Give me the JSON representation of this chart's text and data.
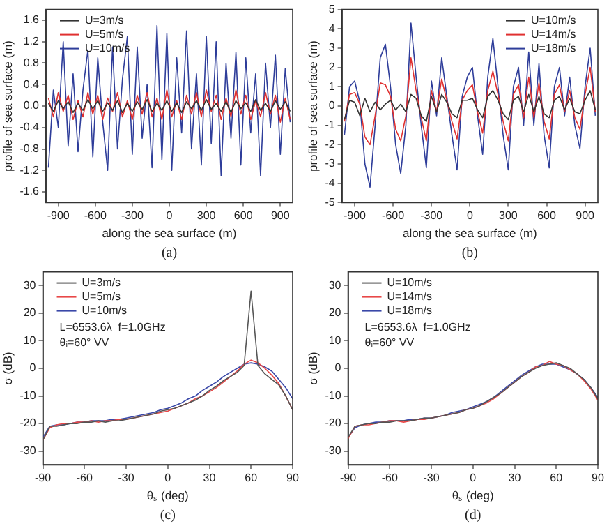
{
  "chart_data": [
    {
      "type": "line",
      "xlabel": "along the sea surface (m)",
      "ylabel": "profile of sea surface (m)",
      "legend": "top left",
      "grid": false,
      "marker": "none",
      "line_style": "solid",
      "xlim": [
        -1000,
        1000
      ],
      "xticks": [
        -900,
        -600,
        -300,
        0,
        300,
        600,
        900
      ],
      "ylim": [
        -1.8,
        1.8
      ],
      "yticks": [
        -1.6,
        -1.2,
        -0.8,
        -0.4,
        {
          "value": 0,
          "label": "0.0"
        },
        0.4,
        0.8,
        1.2,
        1.6
      ],
      "x": [
        -980,
        -940,
        -900,
        -860,
        -820,
        -780,
        -740,
        -700,
        -660,
        -620,
        -580,
        -540,
        -500,
        -460,
        -420,
        -380,
        -340,
        -300,
        -260,
        -220,
        -180,
        -140,
        -100,
        -60,
        -20,
        20,
        60,
        100,
        140,
        180,
        220,
        260,
        300,
        340,
        380,
        420,
        460,
        500,
        540,
        580,
        620,
        660,
        700,
        740,
        780,
        820,
        860,
        900,
        940,
        980
      ],
      "series": [
        {
          "name": "U=3m/s",
          "color": "#333333",
          "values": [
            0.05,
            -0.1,
            0.1,
            -0.05,
            0.08,
            -0.12,
            0.05,
            -0.08,
            0.12,
            -0.05,
            0.1,
            -0.1,
            0.06,
            -0.08,
            0.1,
            -0.12,
            0.05,
            -0.1,
            0.08,
            -0.06,
            0.12,
            -0.1,
            0.05,
            -0.08,
            0.1,
            -0.1,
            0.06,
            -0.12,
            0.08,
            -0.05,
            0.1,
            -0.08,
            0.12,
            -0.06,
            0.05,
            -0.1,
            0.08,
            -0.12,
            0.1,
            -0.05,
            0.06,
            -0.1,
            0.12,
            -0.08,
            0.05,
            -0.1,
            0.1,
            -0.06,
            0.08,
            -0.1
          ]
        },
        {
          "name": "U=5m/s",
          "color": "#e03030",
          "values": [
            0.15,
            -0.2,
            0.25,
            -0.1,
            0.2,
            -0.25,
            0.1,
            -0.2,
            0.25,
            -0.15,
            0.2,
            -0.25,
            0.15,
            -0.1,
            0.25,
            -0.2,
            0.1,
            -0.25,
            0.2,
            -0.15,
            0.25,
            -0.2,
            0.15,
            -0.25,
            0.3,
            -0.2,
            0.1,
            -0.25,
            0.2,
            -0.15,
            0.25,
            -0.2,
            0.3,
            -0.1,
            0.2,
            -0.25,
            0.15,
            -0.2,
            0.3,
            -0.15,
            0.2,
            -0.25,
            0.1,
            -0.2,
            0.25,
            -0.15,
            0.2,
            -0.3,
            0.15,
            -0.25
          ]
        },
        {
          "name": "U=10m/s",
          "color": "#2e3d9a",
          "values": [
            -1.15,
            0.3,
            -0.4,
            1.2,
            -0.75,
            0.6,
            -0.85,
            0.3,
            1.05,
            -0.95,
            0.9,
            -0.3,
            -1.2,
            1.1,
            -0.8,
            0.5,
            1.3,
            -0.9,
            1.1,
            -0.6,
            0.4,
            -1.15,
            1.5,
            -1.0,
            1.35,
            -1.2,
            0.9,
            -0.5,
            1.4,
            -0.8,
            0.6,
            -1.1,
            1.3,
            -0.7,
            1.2,
            -1.3,
            0.8,
            -0.6,
            1.0,
            -1.1,
            0.9,
            -0.5,
            0.6,
            -1.3,
            0.8,
            -0.4,
            0.95,
            -0.9,
            0.7,
            -0.3
          ]
        }
      ],
      "annotations": [
        "(a)"
      ]
    },
    {
      "type": "line",
      "xlabel": "along the sea surface (m)",
      "ylabel": "profile of sea surface (m)",
      "legend": "top right",
      "grid": false,
      "marker": "none",
      "line_style": "solid",
      "xlim": [
        -1000,
        1000
      ],
      "xticks": [
        -900,
        -600,
        -300,
        0,
        300,
        600,
        900
      ],
      "ylim": [
        -5,
        5
      ],
      "yticks": [
        -5,
        -4,
        -3,
        -2,
        -1,
        0,
        1,
        2,
        3,
        4,
        5
      ],
      "x": [
        -980,
        -940,
        -900,
        -860,
        -820,
        -780,
        -740,
        -700,
        -660,
        -620,
        -580,
        -540,
        -500,
        -460,
        -420,
        -380,
        -340,
        -300,
        -260,
        -220,
        -180,
        -140,
        -100,
        -60,
        -20,
        20,
        60,
        100,
        140,
        180,
        220,
        260,
        300,
        340,
        380,
        420,
        460,
        500,
        540,
        580,
        620,
        660,
        700,
        740,
        780,
        820,
        860,
        900,
        940,
        980
      ],
      "series": [
        {
          "name": "U=10m/s",
          "color": "#333333",
          "values": [
            -0.7,
            0.3,
            0.2,
            -0.5,
            0.4,
            -0.3,
            0.2,
            -0.2,
            0.1,
            0.3,
            -0.2,
            0.1,
            -0.3,
            0.6,
            0.4,
            -0.5,
            -0.8,
            0.5,
            -0.3,
            0.6,
            0.2,
            -0.4,
            -0.6,
            0.3,
            0.3,
            0.4,
            -0.2,
            -0.6,
            0.5,
            0.8,
            0.3,
            -0.4,
            -0.7,
            0.3,
            0.5,
            -0.3,
            0.6,
            -0.3,
            0.5,
            -0.4,
            -0.6,
            0.3,
            0.5,
            -0.2,
            0.4,
            -0.3,
            -0.4,
            0.3,
            0.8,
            -0.2
          ]
        },
        {
          "name": "U=14m/s",
          "color": "#e03030",
          "values": [
            -0.8,
            0.6,
            0.7,
            0.1,
            -1.6,
            -2.0,
            -0.5,
            1.2,
            1.1,
            0.5,
            -1.2,
            -1.8,
            -0.5,
            2.5,
            0.8,
            -0.6,
            -1.8,
            0.8,
            -0.3,
            1.4,
            0.3,
            -0.8,
            -1.7,
            0.3,
            0.8,
            1.1,
            -0.3,
            -1.4,
            0.8,
            1.8,
            0.6,
            -0.8,
            -1.8,
            0.6,
            1.1,
            -0.6,
            1.5,
            -0.6,
            1.2,
            -0.8,
            -1.7,
            0.6,
            1.1,
            -0.3,
            0.8,
            -0.6,
            -1.2,
            0.6,
            2.0,
            -0.3
          ]
        },
        {
          "name": "U=18m/s",
          "color": "#2e3d9a",
          "values": [
            -1.5,
            1.0,
            1.3,
            0.2,
            -3.0,
            -4.2,
            -1.0,
            2.5,
            3.2,
            1.0,
            -2.0,
            -3.5,
            -1.0,
            4.3,
            1.5,
            -1.0,
            -3.2,
            1.3,
            -0.5,
            2.5,
            0.5,
            -1.5,
            -3.3,
            0.5,
            1.5,
            2.0,
            -0.5,
            -2.5,
            1.5,
            3.5,
            1.0,
            -1.5,
            -3.3,
            1.0,
            2.0,
            -1.0,
            2.8,
            -1.0,
            2.2,
            -1.5,
            -3.2,
            1.0,
            2.0,
            -0.5,
            1.5,
            -1.0,
            -2.2,
            1.0,
            3.0,
            -0.5
          ]
        }
      ],
      "annotations": [
        "(b)"
      ]
    },
    {
      "type": "line",
      "xlabel": "θₛ (deg)",
      "ylabel": "σ (dB)",
      "legend": "top left",
      "grid": false,
      "marker": "none",
      "line_style": "solid",
      "xlim": [
        -90,
        90
      ],
      "xticks": [
        -90,
        -60,
        -30,
        0,
        30,
        60,
        90
      ],
      "ylim": [
        -35,
        35
      ],
      "yticks": [
        -30,
        -20,
        -10,
        0,
        10,
        20,
        30
      ],
      "x": [
        -90,
        -85,
        -80,
        -75,
        -70,
        -65,
        -60,
        -55,
        -50,
        -45,
        -40,
        -35,
        -30,
        -25,
        -20,
        -15,
        -10,
        -5,
        0,
        5,
        10,
        15,
        20,
        25,
        30,
        35,
        40,
        45,
        50,
        55,
        60,
        65,
        70,
        75,
        80,
        85,
        90
      ],
      "series": [
        {
          "name": "U=3m/s",
          "color": "#555555",
          "values": [
            -26,
            -21,
            -21,
            -20.5,
            -20,
            -20,
            -19.5,
            -19.5,
            -19,
            -19.5,
            -19,
            -19,
            -18.5,
            -18,
            -17.5,
            -17,
            -16.5,
            -15.5,
            -15,
            -14.5,
            -13.5,
            -12.5,
            -11.5,
            -10,
            -8,
            -6.5,
            -4.5,
            -3,
            -1.5,
            1,
            28,
            1,
            -2,
            -4,
            -6,
            -10,
            -15
          ]
        },
        {
          "name": "U=5m/s",
          "color": "#e84848",
          "values": [
            -26,
            -21.5,
            -20.5,
            -20,
            -20,
            -19.5,
            -19.5,
            -19,
            -19.5,
            -19,
            -19,
            -18.5,
            -18.5,
            -18,
            -17.5,
            -17,
            -16.5,
            -16,
            -15.5,
            -14.5,
            -13.5,
            -12.5,
            -11,
            -10,
            -8.5,
            -7,
            -5,
            -3,
            -1,
            1.5,
            3,
            2,
            0,
            -2.5,
            -5.5,
            -10,
            -15
          ]
        },
        {
          "name": "U=10m/s",
          "color": "#3a48a8",
          "values": [
            -25,
            -21,
            -20.5,
            -20.5,
            -20,
            -19.5,
            -19.5,
            -19,
            -19,
            -19,
            -18.5,
            -18.5,
            -18,
            -17.5,
            -17,
            -16.5,
            -16,
            -15,
            -14.5,
            -13.5,
            -12.5,
            -11,
            -10,
            -8,
            -6.5,
            -5,
            -3,
            -1.5,
            0,
            1.5,
            2,
            1.5,
            0.5,
            -1,
            -4,
            -7,
            -11
          ]
        }
      ],
      "annotations": [
        "L=6553.6λ  f=1.0GHz",
        "θᵢ=60° VV",
        "(c)"
      ]
    },
    {
      "type": "line",
      "xlabel": "θₛ (deg)",
      "ylabel": "σ (dB)",
      "legend": "top left",
      "grid": false,
      "marker": "none",
      "line_style": "solid",
      "xlim": [
        -90,
        90
      ],
      "xticks": [
        -90,
        -60,
        -30,
        0,
        30,
        60,
        90
      ],
      "ylim": [
        -35,
        35
      ],
      "yticks": [
        -30,
        -20,
        -10,
        0,
        10,
        20,
        30
      ],
      "x": [
        -90,
        -85,
        -80,
        -75,
        -70,
        -65,
        -60,
        -55,
        -50,
        -45,
        -40,
        -35,
        -30,
        -25,
        -20,
        -15,
        -10,
        -5,
        0,
        5,
        10,
        15,
        20,
        25,
        30,
        35,
        40,
        45,
        50,
        55,
        60,
        65,
        70,
        75,
        80,
        85,
        90
      ],
      "series": [
        {
          "name": "U=10m/s",
          "color": "#555555",
          "values": [
            -25,
            -21,
            -20.5,
            -20,
            -20,
            -19.5,
            -19.5,
            -19,
            -19,
            -19,
            -18.5,
            -18,
            -18,
            -17.5,
            -17,
            -16.5,
            -16,
            -15,
            -14.5,
            -13.5,
            -12,
            -10.5,
            -9,
            -7,
            -5,
            -3,
            -1.5,
            0,
            1,
            1.5,
            2,
            1,
            0,
            -2,
            -4,
            -7,
            -11
          ]
        },
        {
          "name": "U=14m/s",
          "color": "#e84848",
          "values": [
            -25.5,
            -21,
            -20.5,
            -20.5,
            -20,
            -19.5,
            -19,
            -19,
            -19.5,
            -19,
            -18.5,
            -18.5,
            -18,
            -17.5,
            -17,
            -16.5,
            -16,
            -15,
            -14.5,
            -13.5,
            -12.5,
            -11,
            -9,
            -7,
            -5,
            -3,
            -1.5,
            0.5,
            1,
            2.5,
            1.5,
            1,
            -0.5,
            -2,
            -4.5,
            -7.5,
            -11.5
          ]
        },
        {
          "name": "U=18m/s",
          "color": "#3a48a8",
          "values": [
            -25,
            -21.5,
            -20.5,
            -20,
            -19.5,
            -19.5,
            -19,
            -19,
            -19,
            -18.5,
            -18.5,
            -18,
            -18,
            -17.5,
            -17,
            -16,
            -15.5,
            -15,
            -14,
            -13,
            -12,
            -10.5,
            -8.5,
            -6.5,
            -4.5,
            -2.5,
            -1,
            0.5,
            1.5,
            1.5,
            1.5,
            0.5,
            -0.5,
            -2,
            -4,
            -7,
            -10.5
          ]
        }
      ],
      "annotations": [
        "L=6553.6λ  f=1.0GHz",
        "θᵢ=60° VV",
        "(d)"
      ]
    }
  ]
}
